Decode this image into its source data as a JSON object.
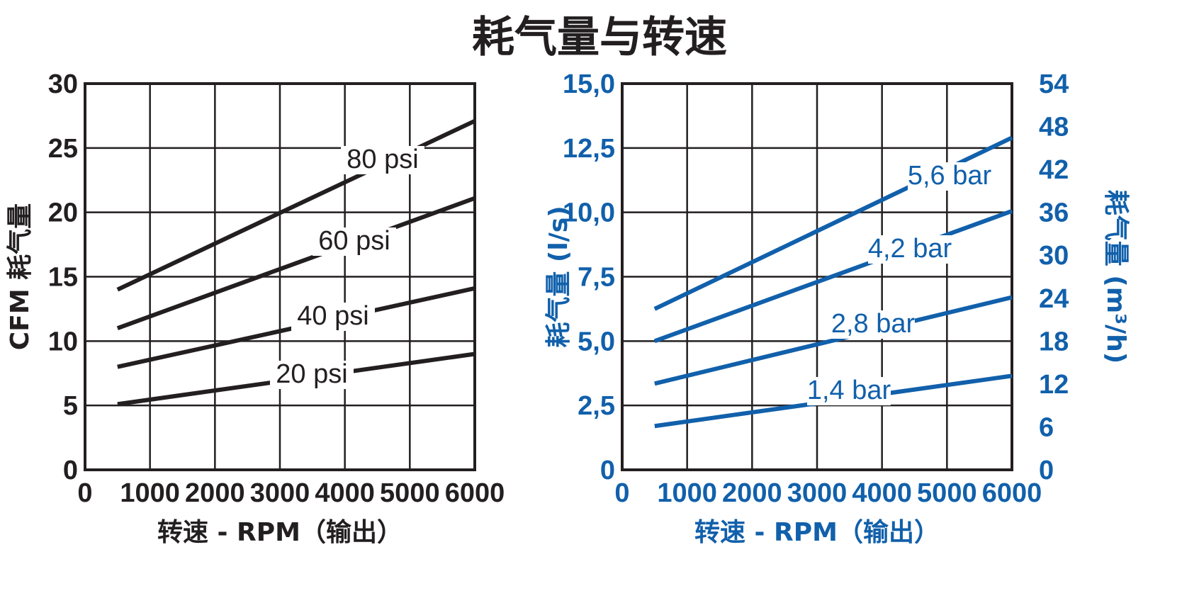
{
  "title": "耗气量与转速",
  "chart_data": [
    {
      "type": "line",
      "ylabel": "CFM 耗气量",
      "xlabel": "转速 - RPM（输出）",
      "xlim": [
        0,
        6000
      ],
      "ylim": [
        0,
        30
      ],
      "x_ticks": [
        "0",
        "1000",
        "2000",
        "3000",
        "4000",
        "5000",
        "6000"
      ],
      "y_ticks": [
        "0",
        "5",
        "10",
        "15",
        "20",
        "25",
        "30"
      ],
      "grid": true,
      "series": [
        {
          "name": "20 psi",
          "x": [
            500,
            6000
          ],
          "y": [
            5.1,
            9.0
          ]
        },
        {
          "name": "40 psi",
          "x": [
            500,
            6000
          ],
          "y": [
            8.0,
            14.1
          ]
        },
        {
          "name": "60 psi",
          "x": [
            500,
            6000
          ],
          "y": [
            11.0,
            21.1
          ]
        },
        {
          "name": "80 psi",
          "x": [
            500,
            6000
          ],
          "y": [
            14.0,
            27.1
          ]
        }
      ],
      "color": "#231f20"
    },
    {
      "type": "line",
      "ylabel": "耗气量 (l/s)",
      "ylabel_right": "耗气量 (m³/h)",
      "xlabel": "转速 - RPM（输出）",
      "xlim": [
        0,
        6000
      ],
      "ylim": [
        0,
        15
      ],
      "ylim_right": [
        0,
        54
      ],
      "x_ticks": [
        "0",
        "1000",
        "2000",
        "3000",
        "4000",
        "5000",
        "6000"
      ],
      "y_ticks": [
        "0",
        "2,5",
        "5,0",
        "7,5",
        "10,0",
        "12,5",
        "15,0"
      ],
      "y_ticks_right": [
        "0",
        "6",
        "12",
        "18",
        "24",
        "30",
        "36",
        "42",
        "48",
        "54"
      ],
      "grid": true,
      "series": [
        {
          "name": "1,4 bar",
          "x": [
            500,
            6000
          ],
          "y": [
            1.7,
            3.65
          ]
        },
        {
          "name": "2,8 bar",
          "x": [
            500,
            6000
          ],
          "y": [
            3.35,
            6.7
          ]
        },
        {
          "name": "4,2 bar",
          "x": [
            500,
            6000
          ],
          "y": [
            5.0,
            10.05
          ]
        },
        {
          "name": "5,6 bar",
          "x": [
            500,
            6000
          ],
          "y": [
            6.25,
            12.9
          ]
        }
      ],
      "color": "#1160ab"
    }
  ]
}
